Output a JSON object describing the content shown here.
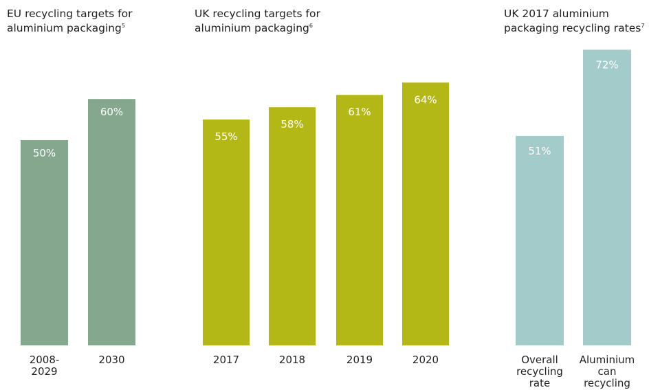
{
  "colors": {
    "eu_bar": "#84a78e",
    "uk_target_bar": "#b4b816",
    "uk_rate_bar": "#a2cbca"
  },
  "chart_data": [
    {
      "type": "bar",
      "title": "EU recycling targets for aluminium packaging",
      "title_footnote": "5",
      "categories": [
        [
          "2008-",
          "2029"
        ],
        [
          "2030"
        ]
      ],
      "values": [
        50,
        60
      ],
      "value_labels": [
        "50%",
        "60%"
      ],
      "ylim": [
        0,
        100
      ],
      "xlabel": "",
      "ylabel": "",
      "grid": false
    },
    {
      "type": "bar",
      "title": "UK recycling targets for aluminium packaging",
      "title_footnote": "6",
      "categories": [
        [
          "2017"
        ],
        [
          "2018"
        ],
        [
          "2019"
        ],
        [
          "2020"
        ]
      ],
      "values": [
        55,
        58,
        61,
        64
      ],
      "value_labels": [
        "55%",
        "58%",
        "61%",
        "64%"
      ],
      "ylim": [
        0,
        100
      ],
      "xlabel": "",
      "ylabel": "",
      "grid": false
    },
    {
      "type": "bar",
      "title": "UK 2017 aluminium packaging recycling rates",
      "title_footnote": "7",
      "categories": [
        [
          "Overall",
          "recycling",
          "rate"
        ],
        [
          "Aluminium",
          "can",
          "recycling"
        ]
      ],
      "values": [
        51,
        72
      ],
      "value_labels": [
        "51%",
        "72%"
      ],
      "ylim": [
        0,
        100
      ],
      "xlabel": "",
      "ylabel": "",
      "grid": false
    }
  ]
}
